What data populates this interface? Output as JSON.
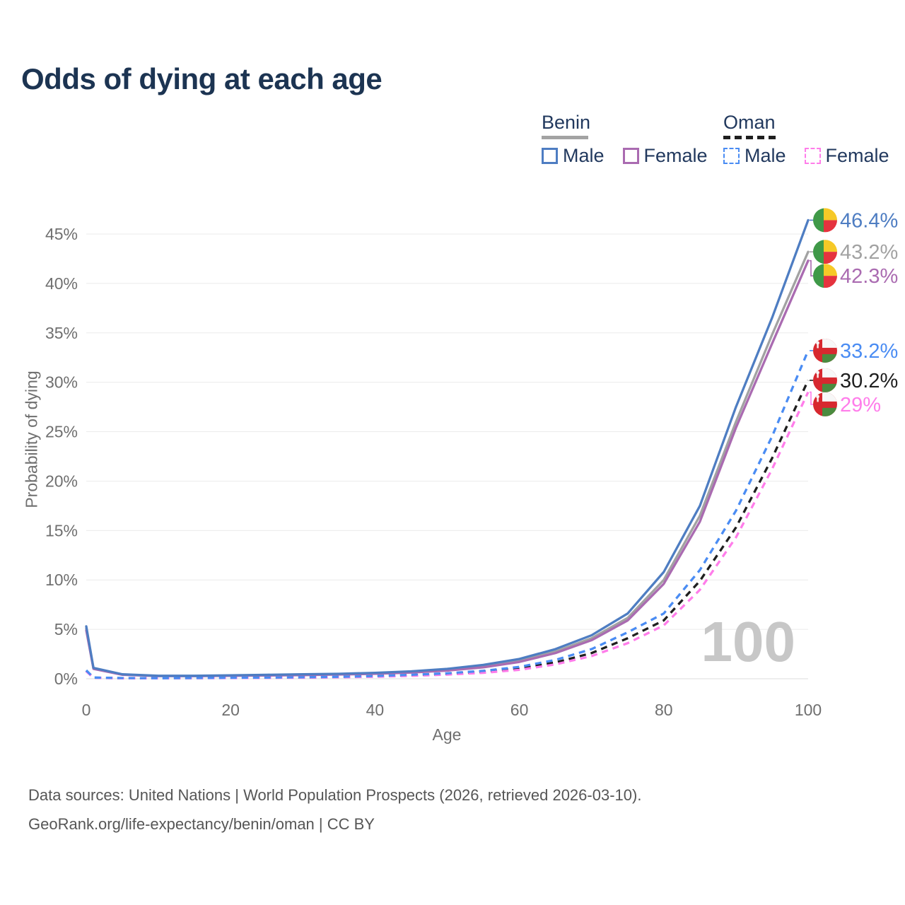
{
  "header": {
    "title": "Odds of dying at each age"
  },
  "legend": {
    "groups": [
      {
        "title": "Benin",
        "line_style": "solid",
        "line_color": "#a3a3a3",
        "items": [
          {
            "label": "Male",
            "color": "#4e7dc2"
          },
          {
            "label": "Female",
            "color": "#aa6bb1"
          }
        ]
      },
      {
        "title": "Oman",
        "line_style": "dashed",
        "line_color": "#1f1f1f",
        "items": [
          {
            "label": "Male",
            "color": "#4a8cf3"
          },
          {
            "label": "Female",
            "color": "#ff7dea"
          }
        ]
      }
    ]
  },
  "chart_data": {
    "type": "line",
    "title": "Odds of dying at each age",
    "xlabel": "Age",
    "ylabel": "Probability of dying",
    "xlim": [
      0,
      100
    ],
    "ylim": [
      0,
      46.5
    ],
    "xticks": [
      0,
      20,
      40,
      60,
      80,
      100
    ],
    "yticks": [
      0,
      5,
      10,
      15,
      20,
      25,
      30,
      35,
      40,
      45
    ],
    "ytick_suffix": "%",
    "grid": "horizontal",
    "legend_position": "top-right",
    "watermark": "100",
    "x": [
      0,
      1,
      5,
      10,
      15,
      20,
      25,
      30,
      35,
      40,
      45,
      50,
      55,
      60,
      65,
      70,
      75,
      80,
      85,
      90,
      95,
      100
    ],
    "series": [
      {
        "name": "Benin Male",
        "color": "#4e7dc2",
        "dash": false,
        "flag": "benin",
        "end_value": 46.4,
        "end_label": "46.4%",
        "values": [
          5.3,
          1.1,
          0.45,
          0.3,
          0.3,
          0.35,
          0.4,
          0.45,
          0.5,
          0.6,
          0.75,
          1.0,
          1.4,
          2.0,
          3.0,
          4.4,
          6.6,
          10.8,
          17.5,
          27.5,
          36.5,
          46.4
        ]
      },
      {
        "name": "Benin Both sexes",
        "color": "#a2a2a2",
        "dash": false,
        "flag": "benin",
        "end_value": 43.2,
        "end_label": "43.2%",
        "values": [
          5.1,
          1.05,
          0.42,
          0.28,
          0.28,
          0.32,
          0.36,
          0.4,
          0.46,
          0.55,
          0.7,
          0.9,
          1.3,
          1.85,
          2.75,
          4.1,
          6.15,
          10.0,
          16.5,
          26.0,
          34.8,
          43.2
        ]
      },
      {
        "name": "Benin Female",
        "color": "#aa6bb1",
        "dash": false,
        "flag": "benin",
        "end_value": 42.3,
        "end_label": "42.3%",
        "values": [
          4.9,
          1.0,
          0.4,
          0.27,
          0.27,
          0.3,
          0.33,
          0.37,
          0.43,
          0.5,
          0.63,
          0.82,
          1.15,
          1.7,
          2.6,
          3.9,
          5.9,
          9.6,
          15.9,
          25.4,
          33.9,
          42.3
        ]
      },
      {
        "name": "Oman Male",
        "color": "#4a8cf3",
        "dash": true,
        "flag": "oman",
        "end_value": 33.2,
        "end_label": "33.2%",
        "values": [
          0.85,
          0.12,
          0.07,
          0.06,
          0.08,
          0.1,
          0.12,
          0.15,
          0.2,
          0.28,
          0.4,
          0.55,
          0.8,
          1.2,
          1.9,
          3.0,
          4.7,
          6.6,
          11.0,
          17.0,
          24.5,
          33.2
        ]
      },
      {
        "name": "Oman Both sexes",
        "color": "#1f1f1f",
        "dash": true,
        "flag": "oman",
        "end_value": 30.2,
        "end_label": "30.2%",
        "values": [
          0.8,
          0.11,
          0.06,
          0.055,
          0.07,
          0.09,
          0.11,
          0.13,
          0.18,
          0.25,
          0.35,
          0.48,
          0.7,
          1.05,
          1.65,
          2.6,
          4.1,
          5.9,
          9.9,
          15.3,
          22.3,
          30.2
        ]
      },
      {
        "name": "Oman Female",
        "color": "#ff7dea",
        "dash": true,
        "flag": "oman",
        "end_value": 29,
        "end_label": "29%",
        "values": [
          0.75,
          0.1,
          0.05,
          0.05,
          0.06,
          0.07,
          0.09,
          0.11,
          0.15,
          0.2,
          0.3,
          0.42,
          0.6,
          0.9,
          1.45,
          2.3,
          3.6,
          5.4,
          9.0,
          14.3,
          21.2,
          29.0
        ]
      }
    ],
    "flags": {
      "benin": {
        "green": "#3f9948",
        "yellow": "#f6c927",
        "red": "#e5333e"
      },
      "oman": {
        "red": "#d7282f",
        "white": "#f7f7f7",
        "green": "#4a8b3f"
      }
    }
  },
  "footer": {
    "line1": "Data sources: United Nations | World Population Prospects (2026, retrieved 2026-03-10).",
    "line2": "GeoRank.org/life-expectancy/benin/oman | CC BY"
  }
}
